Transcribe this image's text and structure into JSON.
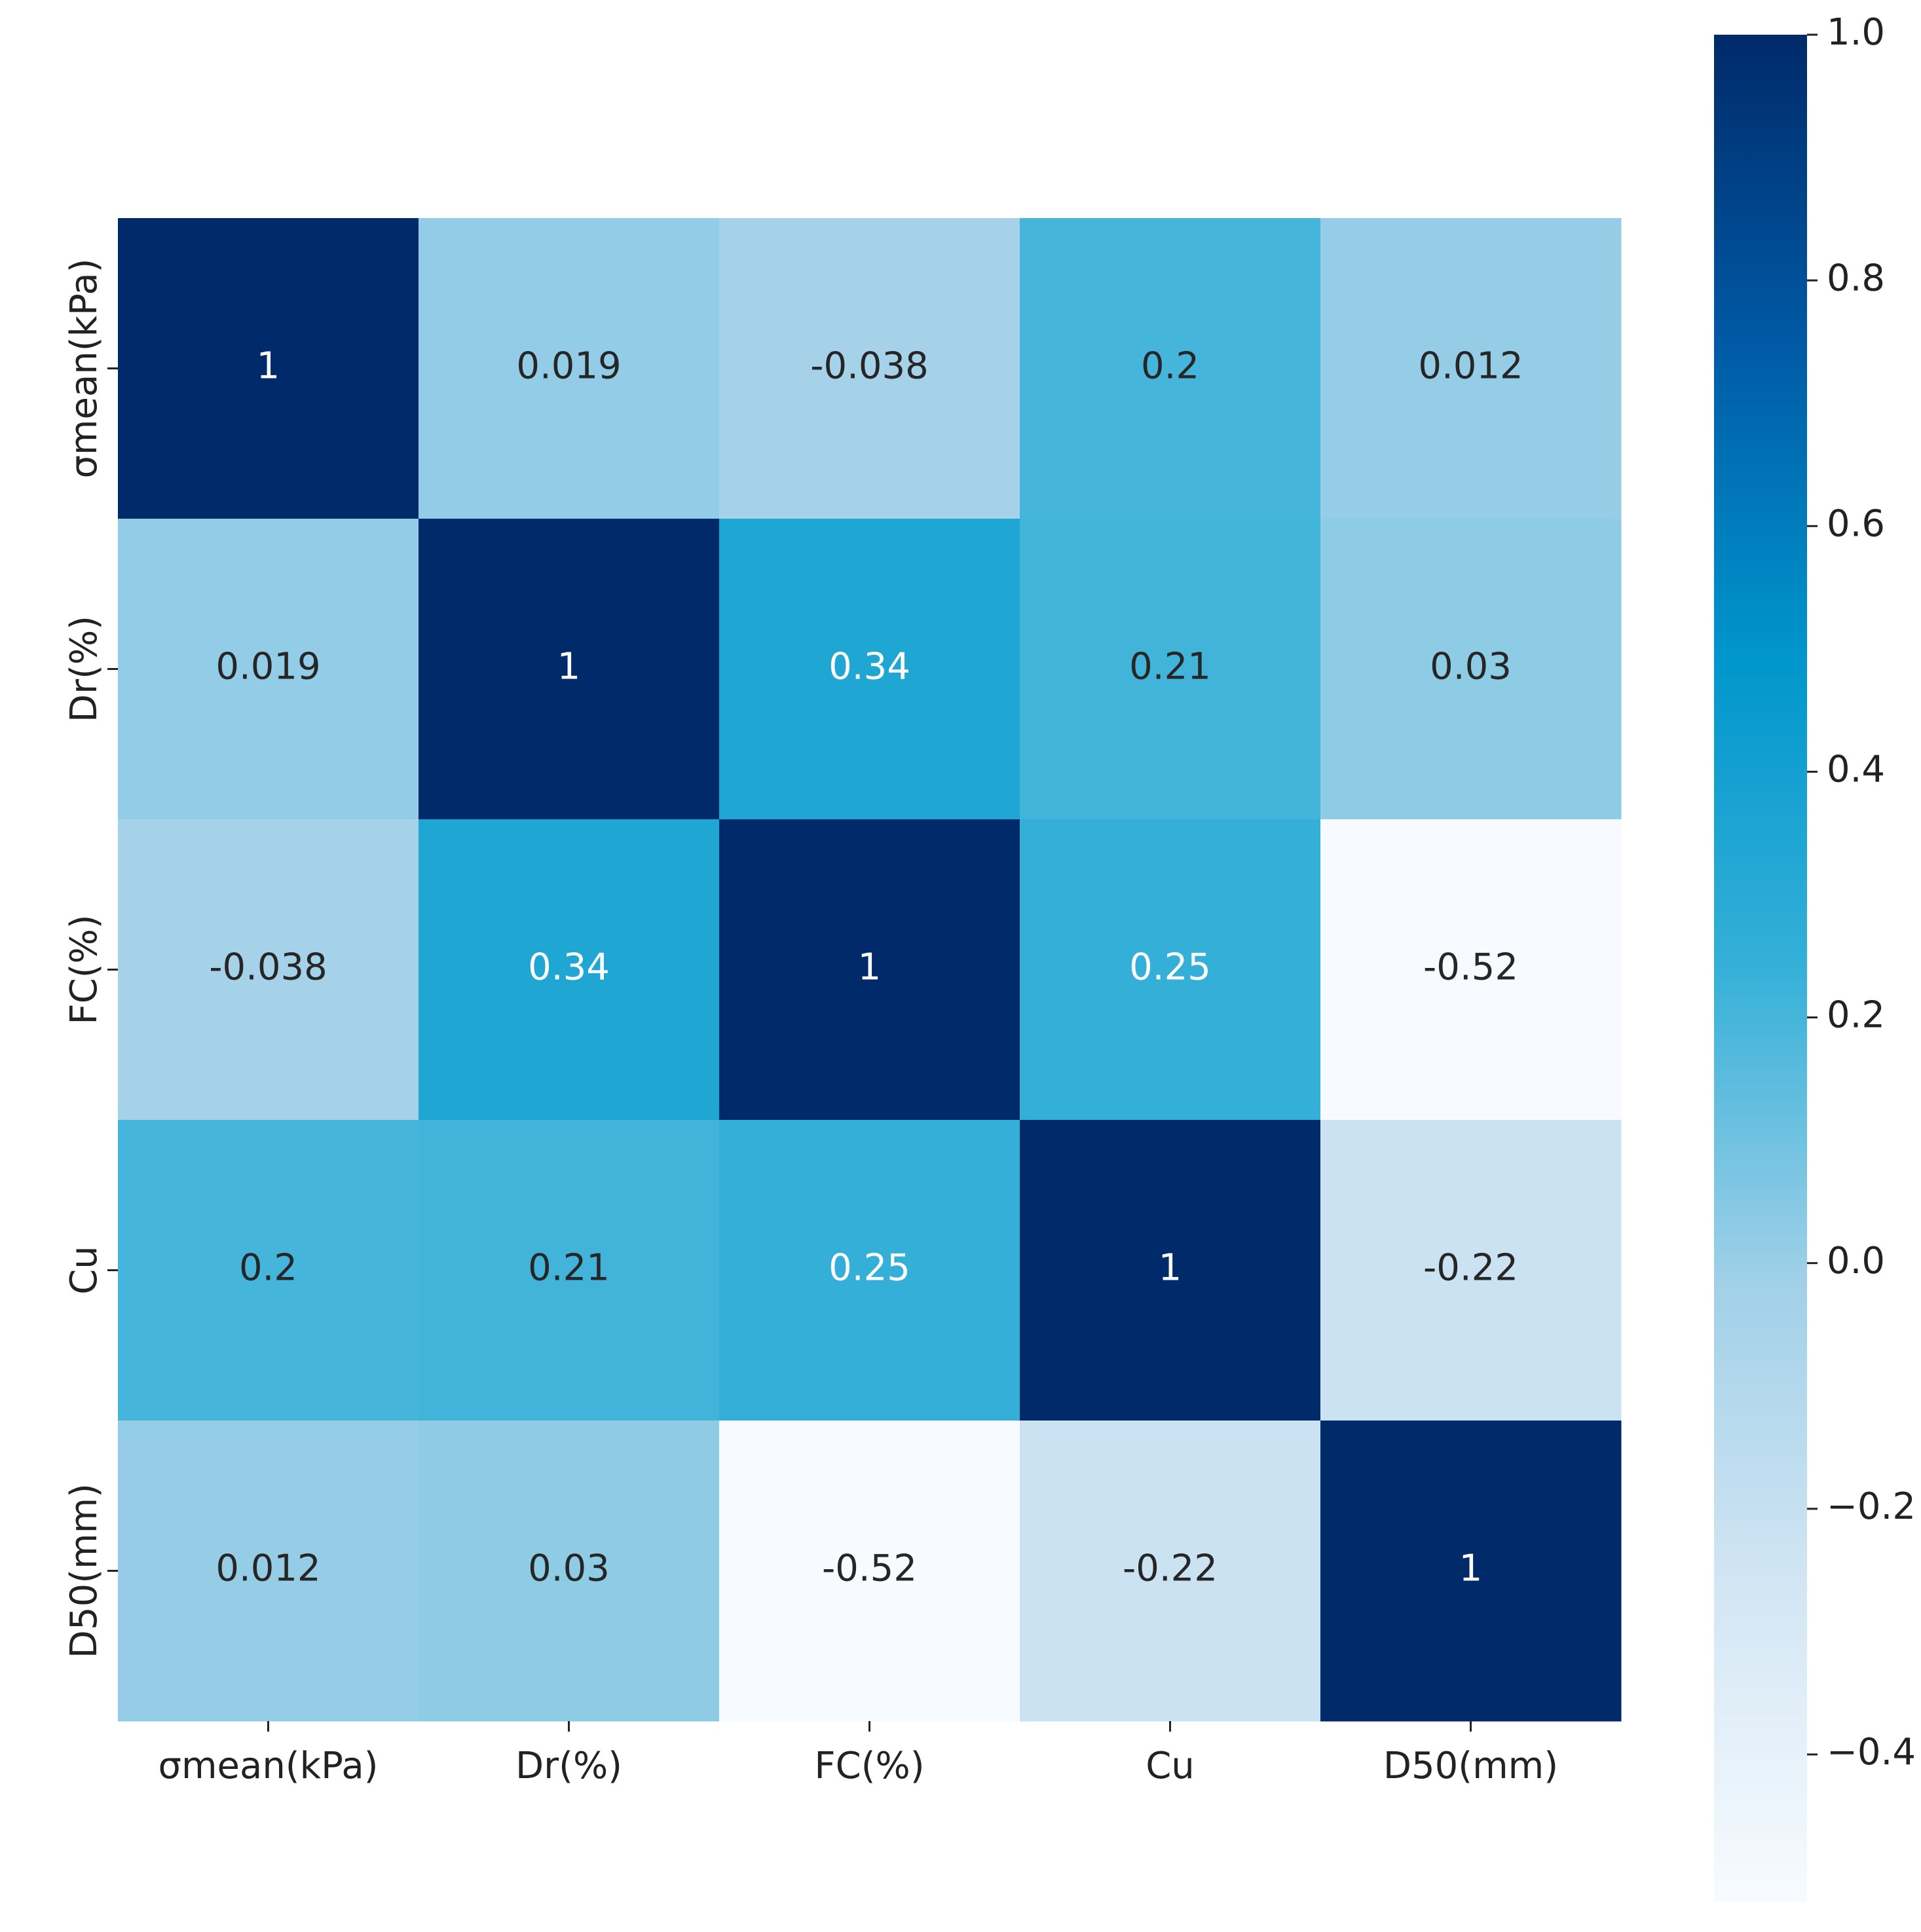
{
  "chart_data": {
    "type": "heatmap",
    "categories": [
      "σmean(kPa)",
      "Dr(%)",
      "FC(%)",
      "Cu",
      "D50(mm)"
    ],
    "values": [
      [
        1,
        0.019,
        -0.038,
        0.2,
        0.012
      ],
      [
        0.019,
        1,
        0.34,
        0.21,
        0.03
      ],
      [
        -0.038,
        0.34,
        1,
        0.25,
        -0.52
      ],
      [
        0.2,
        0.21,
        0.25,
        1,
        -0.22
      ],
      [
        0.012,
        0.03,
        -0.52,
        -0.22,
        1
      ]
    ],
    "colormap": [
      "#f7fbff",
      "#d3e6f4",
      "#a0d0e8",
      "#35b0d8",
      "#0096cc",
      "#005aa6",
      "#002a6a"
    ],
    "clim": [
      -0.52,
      1
    ],
    "cticks": [
      {
        "value": 1,
        "label": "1.0"
      },
      {
        "value": 0.8,
        "label": "0.8"
      },
      {
        "value": 0.6,
        "label": "0.6"
      },
      {
        "value": 0.4,
        "label": "0.4"
      },
      {
        "value": 0.2,
        "label": "0.2"
      },
      {
        "value": 0,
        "label": "0.0"
      },
      {
        "value": -0.2,
        "label": "−0.2"
      },
      {
        "value": -0.4,
        "label": "−0.4"
      }
    ]
  }
}
